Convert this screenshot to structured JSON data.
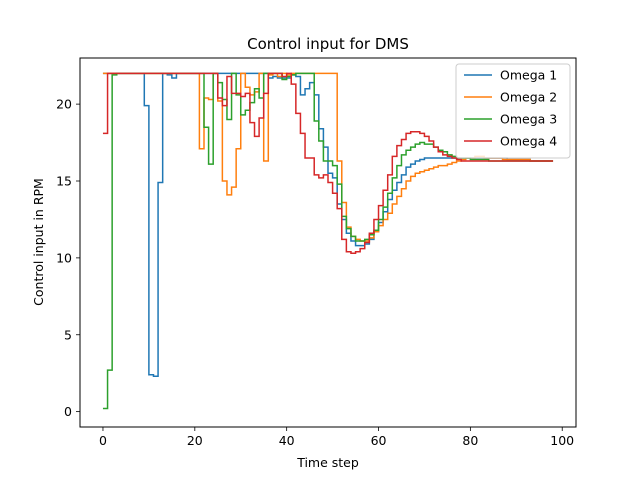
{
  "chart_data": {
    "type": "line",
    "drawstyle": "steps-post",
    "title": "Control input for DMS",
    "xlabel": "Time step",
    "ylabel": "Control input in RPM",
    "xlim": [
      -5,
      103
    ],
    "ylim": [
      -1,
      23
    ],
    "xticks": [
      0,
      20,
      40,
      60,
      80,
      100
    ],
    "yticks": [
      0,
      5,
      10,
      15,
      20
    ],
    "grid": false,
    "legend": "top-right",
    "series": [
      {
        "name": "Omega 1",
        "color": "#1f77b4",
        "x": [
          0,
          1,
          2,
          3,
          4,
          5,
          6,
          7,
          8,
          9,
          10,
          11,
          12,
          13,
          14,
          15,
          16,
          17,
          18,
          19,
          20,
          21,
          22,
          23,
          24,
          25,
          26,
          27,
          28,
          29,
          30,
          31,
          32,
          33,
          34,
          35,
          36,
          37,
          38,
          39,
          40,
          41,
          42,
          43,
          44,
          45,
          46,
          47,
          48,
          49,
          50,
          51,
          52,
          53,
          54,
          55,
          56,
          57,
          58,
          59,
          60,
          61,
          62,
          63,
          64,
          65,
          66,
          67,
          68,
          69,
          70,
          71,
          72,
          73,
          74,
          75,
          76,
          77,
          78,
          79,
          80,
          81,
          82,
          83,
          84,
          85,
          86,
          87,
          88,
          89,
          90,
          91,
          92,
          93,
          94,
          95,
          96,
          97,
          98
        ],
        "y": [
          22,
          22,
          22,
          22,
          22,
          22,
          22,
          22,
          22,
          19.9,
          2.4,
          2.3,
          14.9,
          22,
          21.9,
          21.7,
          22,
          22,
          22,
          22,
          22,
          22,
          22,
          22,
          22,
          22,
          22,
          22,
          22,
          22,
          22,
          22,
          22,
          22,
          22,
          22,
          21.7,
          21.8,
          21.7,
          21.7,
          21.7,
          21.9,
          21.8,
          20.6,
          21.0,
          21.4,
          20.6,
          18.4,
          17.2,
          15.5,
          15.2,
          13.5,
          12.5,
          11.6,
          11.1,
          10.8,
          10.8,
          10.9,
          11.2,
          11.7,
          12.3,
          13.0,
          13.8,
          14.4,
          14.9,
          15.4,
          15.9,
          16.1,
          16.3,
          16.4,
          16.5,
          16.5,
          16.5,
          16.5,
          16.5,
          16.5,
          16.5,
          16.5,
          16.5,
          16.5,
          16.5,
          16.5,
          16.5,
          16.5,
          16.5,
          16.5,
          16.5,
          16.5,
          16.4,
          16.4,
          16.4,
          16.4,
          16.4,
          16.3,
          16.3,
          16.3,
          16.3,
          16.3,
          16.3
        ]
      },
      {
        "name": "Omega 2",
        "color": "#ff7f0e",
        "x": [
          0,
          1,
          2,
          3,
          4,
          5,
          6,
          7,
          8,
          9,
          10,
          11,
          12,
          13,
          14,
          15,
          16,
          17,
          18,
          19,
          20,
          21,
          22,
          23,
          24,
          25,
          26,
          27,
          28,
          29,
          30,
          31,
          32,
          33,
          34,
          35,
          36,
          37,
          38,
          39,
          40,
          41,
          42,
          43,
          44,
          45,
          46,
          47,
          48,
          49,
          50,
          51,
          52,
          53,
          54,
          55,
          56,
          57,
          58,
          59,
          60,
          61,
          62,
          63,
          64,
          65,
          66,
          67,
          68,
          69,
          70,
          71,
          72,
          73,
          74,
          75,
          76,
          77,
          78,
          79,
          80,
          81,
          82,
          83,
          84,
          85,
          86,
          87,
          88,
          89,
          90,
          91,
          92,
          93,
          94,
          95,
          96,
          97,
          98
        ],
        "y": [
          22,
          22,
          22,
          22,
          22,
          22,
          22,
          22,
          22,
          22,
          22,
          22,
          22,
          22,
          22,
          22,
          22,
          22,
          22,
          22,
          22,
          17.1,
          20.4,
          20.3,
          22,
          20.2,
          15.0,
          14.1,
          14.6,
          17.1,
          22,
          21.1,
          20.6,
          20.8,
          22,
          16.3,
          21.9,
          22,
          21.8,
          22,
          21.9,
          22,
          22,
          22,
          22,
          22,
          22,
          22,
          22,
          22,
          22,
          16.3,
          13.6,
          12.0,
          11.4,
          11.2,
          11.1,
          11.1,
          11.3,
          11.7,
          12.1,
          12.5,
          12.9,
          13.5,
          14.0,
          14.5,
          15.0,
          15.3,
          15.5,
          15.6,
          15.7,
          15.8,
          15.9,
          16.0,
          16.0,
          16.1,
          16.2,
          16.3,
          16.4,
          16.5,
          16.5,
          16.6,
          16.6,
          16.5,
          16.5,
          16.5,
          16.5,
          16.4,
          16.4,
          16.4,
          16.4,
          16.4,
          16.4,
          16.3,
          16.3,
          16.3,
          16.3,
          16.3,
          16.3
        ]
      },
      {
        "name": "Omega 3",
        "color": "#2ca02c",
        "x": [
          0,
          1,
          2,
          3,
          4,
          5,
          6,
          7,
          8,
          9,
          10,
          11,
          12,
          13,
          14,
          15,
          16,
          17,
          18,
          19,
          20,
          21,
          22,
          23,
          24,
          25,
          26,
          27,
          28,
          29,
          30,
          31,
          32,
          33,
          34,
          35,
          36,
          37,
          38,
          39,
          40,
          41,
          42,
          43,
          44,
          45,
          46,
          47,
          48,
          49,
          50,
          51,
          52,
          53,
          54,
          55,
          56,
          57,
          58,
          59,
          60,
          61,
          62,
          63,
          64,
          65,
          66,
          67,
          68,
          69,
          70,
          71,
          72,
          73,
          74,
          75,
          76,
          77,
          78,
          79,
          80,
          81,
          82,
          83,
          84,
          85,
          86,
          87,
          88,
          89,
          90,
          91,
          92,
          93,
          94,
          95,
          96,
          97,
          98
        ],
        "y": [
          0.2,
          2.7,
          21.9,
          22,
          22,
          22,
          22,
          22,
          22,
          22,
          22,
          22,
          22,
          22,
          22,
          22,
          22,
          22,
          22,
          22,
          22,
          22,
          18.5,
          16.1,
          22,
          21.4,
          20.3,
          19.0,
          22,
          20.6,
          19.3,
          19.6,
          20.1,
          21.0,
          20.4,
          22,
          22,
          22,
          22,
          21.6,
          21.8,
          21.9,
          22,
          22,
          22,
          22,
          18.9,
          17.6,
          16.3,
          16.3,
          16.0,
          14.8,
          12.7,
          11.9,
          11.4,
          11.1,
          11.1,
          11.2,
          11.5,
          11.8,
          12.5,
          13.3,
          14.2,
          15.2,
          16.0,
          16.7,
          17.0,
          17.2,
          17.4,
          17.5,
          17.4,
          17.4,
          17.2,
          17.0,
          16.9,
          16.7,
          16.6,
          16.5,
          16.5,
          16.5,
          16.4,
          16.4,
          16.4,
          16.4,
          16.3,
          16.3,
          16.3,
          16.3,
          16.3,
          16.3,
          16.3,
          16.3,
          16.3,
          16.3,
          16.3,
          16.3,
          16.3,
          16.3,
          16.3
        ]
      },
      {
        "name": "Omega 4",
        "color": "#d62728",
        "x": [
          0,
          1,
          2,
          3,
          4,
          5,
          6,
          7,
          8,
          9,
          10,
          11,
          12,
          13,
          14,
          15,
          16,
          17,
          18,
          19,
          20,
          21,
          22,
          23,
          24,
          25,
          26,
          27,
          28,
          29,
          30,
          31,
          32,
          33,
          34,
          35,
          36,
          37,
          38,
          39,
          40,
          41,
          42,
          43,
          44,
          45,
          46,
          47,
          48,
          49,
          50,
          51,
          52,
          53,
          54,
          55,
          56,
          57,
          58,
          59,
          60,
          61,
          62,
          63,
          64,
          65,
          66,
          67,
          68,
          69,
          70,
          71,
          72,
          73,
          74,
          75,
          76,
          77,
          78,
          79,
          80,
          81,
          82,
          83,
          84,
          85,
          86,
          87,
          88,
          89,
          90,
          91,
          92,
          93,
          94,
          95,
          96,
          97,
          98
        ],
        "y": [
          18.1,
          22,
          22,
          22,
          22,
          22,
          22,
          22,
          22,
          22,
          22,
          22,
          22,
          22,
          22,
          22,
          22,
          22,
          22,
          22,
          22,
          22,
          22,
          22,
          22,
          20.4,
          19.9,
          21.8,
          20.7,
          20.7,
          20.5,
          20.7,
          18.8,
          17.9,
          19.1,
          20.7,
          22,
          22,
          22,
          21.8,
          22,
          21.3,
          19.4,
          18.1,
          16.5,
          16.5,
          15.4,
          15.2,
          15.4,
          14.9,
          14.2,
          13.2,
          11.2,
          10.4,
          10.3,
          10.4,
          10.6,
          11.0,
          11.6,
          12.5,
          13.4,
          14.4,
          15.4,
          16.6,
          17.3,
          17.7,
          18.1,
          18.2,
          18.2,
          18.1,
          17.9,
          17.6,
          17.2,
          16.9,
          16.7,
          16.6,
          16.5,
          16.4,
          16.3,
          16.3,
          16.3,
          16.3,
          16.3,
          16.3,
          16.3,
          16.3,
          16.3,
          16.3,
          16.3,
          16.3,
          16.3,
          16.3,
          16.3,
          16.3,
          16.3,
          16.3,
          16.3,
          16.3,
          16.3
        ]
      }
    ]
  }
}
